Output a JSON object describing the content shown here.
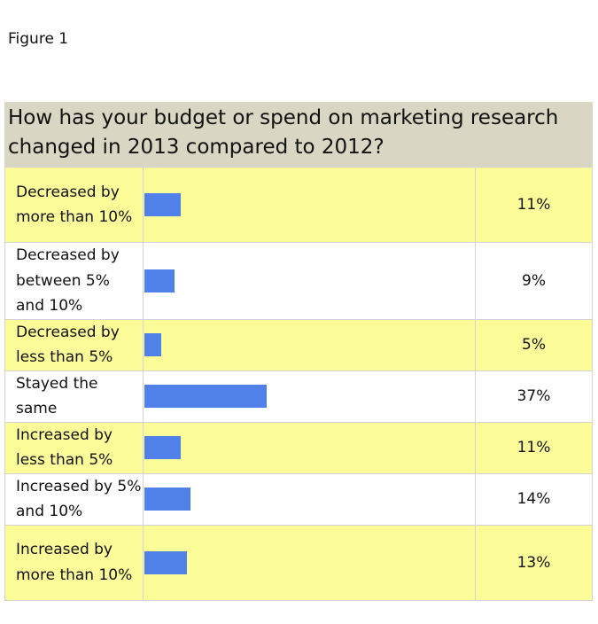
{
  "figure_label": "Figure 1",
  "chart_data": {
    "type": "table",
    "title": "How has your budget or spend on marketing research changed in 2013 compared to 2012?",
    "categories": [
      "Decreased by more than 10%",
      "Decreased by between 5% and 10%",
      "Decreased by less than 5%",
      "Stayed the same",
      "Increased by less than 5%",
      "Increased by 5% and 10%",
      "Increased by more than 10%"
    ],
    "values": [
      11,
      9,
      5,
      37,
      11,
      14,
      13
    ],
    "value_labels": [
      "11%",
      "9%",
      "5%",
      "37%",
      "11%",
      "14%",
      "13%"
    ],
    "bar_color": "#4f81e8",
    "row_colors": [
      "#fcfc99",
      "#ffffff"
    ],
    "title_bg": "#d9d6c3",
    "xlim": [
      0,
      100
    ]
  }
}
